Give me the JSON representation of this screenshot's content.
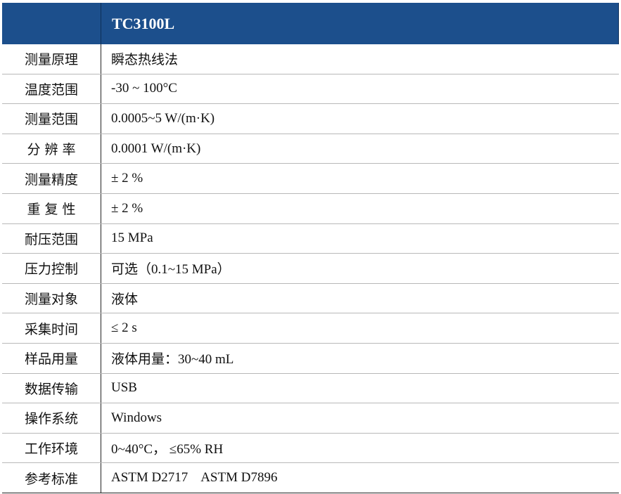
{
  "header": {
    "model": "TC3100L"
  },
  "table": {
    "rows": [
      [
        "测量原理",
        "瞬态热线法"
      ],
      [
        "温度范围",
        "-30 ~ 100°C"
      ],
      [
        "测量范围",
        "0.0005~5 W/(m·K)"
      ],
      [
        "分 辨 率",
        "0.0001 W/(m·K)"
      ],
      [
        "测量精度",
        "± 2 %"
      ],
      [
        "重 复 性",
        "± 2 %"
      ],
      [
        "耐压范围",
        "15 MPa"
      ],
      [
        "压力控制",
        "可选（0.1~15 MPa）"
      ],
      [
        "测量对象",
        "液体"
      ],
      [
        "采集时间",
        "≤ 2 s"
      ],
      [
        "样品用量",
        "液体用量：30~40 mL"
      ],
      [
        "数据传输",
        "USB"
      ],
      [
        "操作系统",
        "Windows"
      ],
      [
        "工作环境",
        "0~40°C， ≤65% RH"
      ],
      [
        "参考标准",
        "ASTM D2717    ASTM D7896"
      ]
    ]
  }
}
